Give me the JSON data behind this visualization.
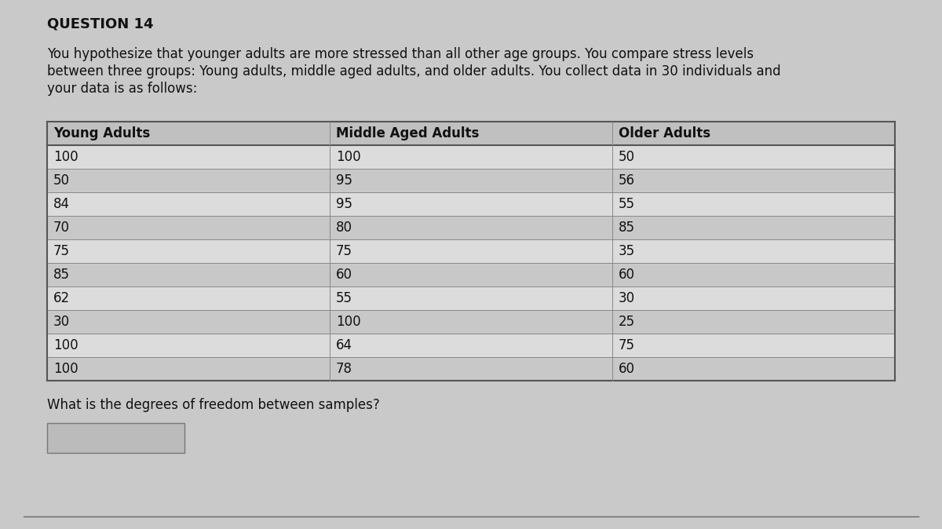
{
  "question_label": "QUESTION 14",
  "description_line1": "You hypothesize that younger adults are more stressed than all other age groups. You compare stress levels",
  "description_line2": "between three groups: Young adults, middle aged adults, and older adults. You collect data in 30 individuals and",
  "description_line3": "your data is as follows:",
  "col_headers": [
    "Young Adults",
    "Middle Aged Adults",
    "Older Adults"
  ],
  "col1_data": [
    "100",
    "50",
    "84",
    "70",
    "75",
    "85",
    "62",
    "30",
    "100",
    "100"
  ],
  "col2_data": [
    "100",
    "95",
    "95",
    "80",
    "75",
    "60",
    "55",
    "100",
    "64",
    "78"
  ],
  "col3_data": [
    "50",
    "56",
    "55",
    "85",
    "35",
    "60",
    "30",
    "25",
    "75",
    "60"
  ],
  "question_text": "What is the degrees of freedom between samples?",
  "bg_color": "#cac9c9",
  "table_bg_light": "#dcdcdc",
  "table_bg_dark": "#c8c8c8",
  "header_bg": "#c0c0c0",
  "border_color": "#555555",
  "inner_line_color": "#888888",
  "text_color": "#111111",
  "answer_box_color": "#bbbbbb",
  "title_fontsize": 13,
  "body_fontsize": 12,
  "table_fontsize": 12,
  "question_fontsize": 12
}
